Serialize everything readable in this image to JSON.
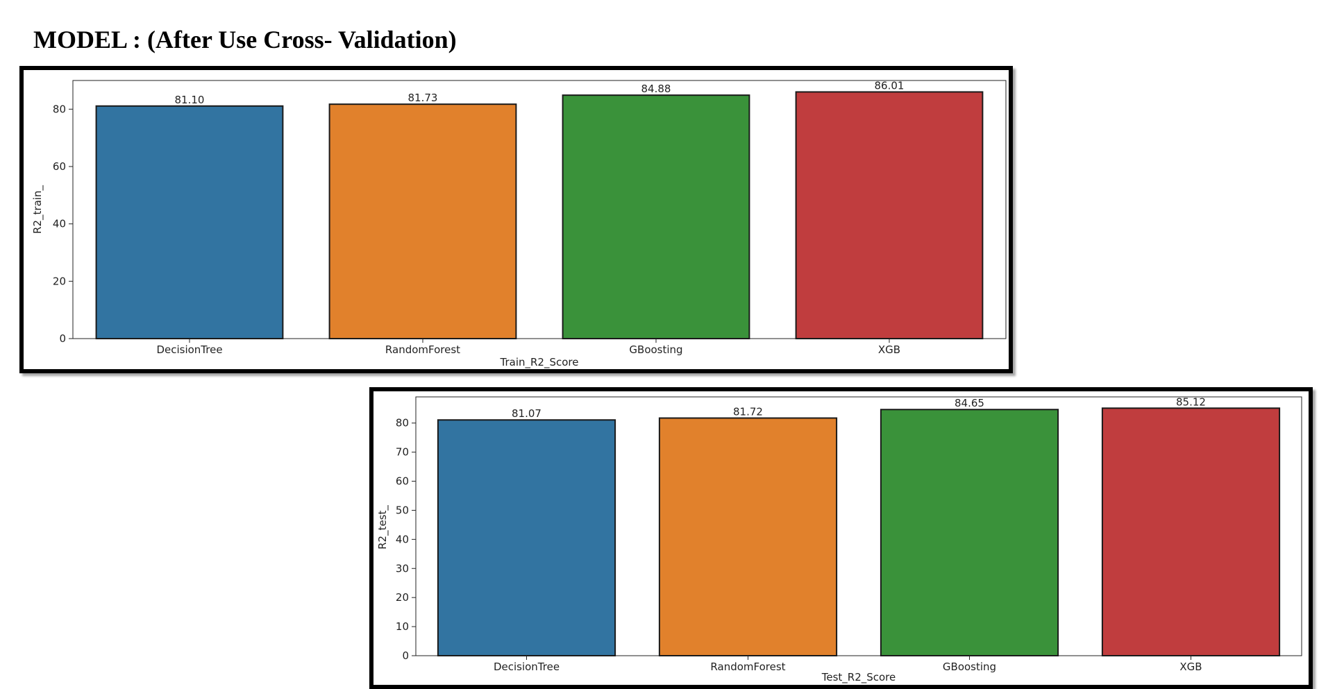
{
  "page": {
    "title": "MODEL : (After Use Cross- Validation)"
  },
  "chart_data": [
    {
      "id": "train",
      "type": "bar",
      "categories": [
        "DecisionTree",
        "RandomForest",
        "GBoosting",
        "XGB"
      ],
      "values": [
        81.1,
        81.73,
        84.88,
        86.01
      ],
      "value_labels": [
        "81.10",
        "81.73",
        "84.88",
        "86.01"
      ],
      "colors": [
        "#3274a1",
        "#e1812c",
        "#3a923a",
        "#c03d3e"
      ],
      "xlabel": "Train_R2_Score",
      "ylabel": "R2_train_",
      "ylim": [
        0,
        90
      ],
      "yticks": [
        0,
        20,
        40,
        60,
        80
      ],
      "grid": false,
      "legend": "none"
    },
    {
      "id": "test",
      "type": "bar",
      "categories": [
        "DecisionTree",
        "RandomForest",
        "GBoosting",
        "XGB"
      ],
      "values": [
        81.07,
        81.72,
        84.65,
        85.12
      ],
      "value_labels": [
        "81.07",
        "81.72",
        "84.65",
        "85.12"
      ],
      "colors": [
        "#3274a1",
        "#e1812c",
        "#3a923a",
        "#c03d3e"
      ],
      "xlabel": "Test_R2_Score",
      "ylabel": "R2_test_",
      "ylim": [
        0,
        89
      ],
      "yticks": [
        0,
        10,
        20,
        30,
        40,
        50,
        60,
        70,
        80
      ],
      "grid": false,
      "legend": "none"
    }
  ]
}
